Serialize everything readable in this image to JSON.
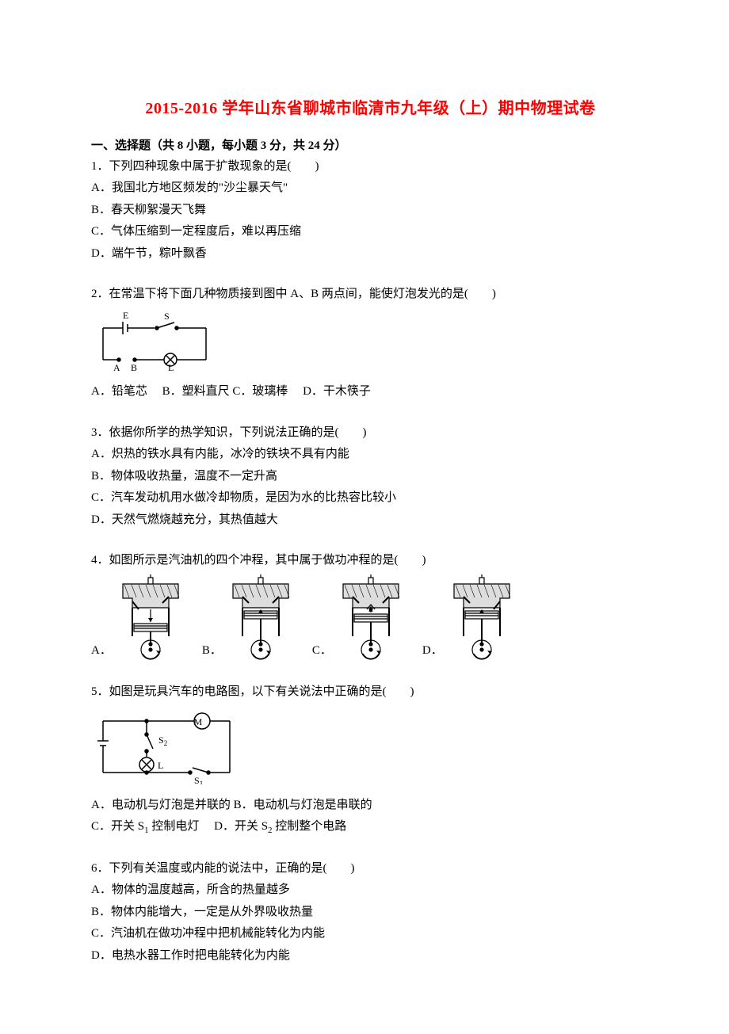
{
  "title": "2015-2016 学年山东省聊城市临清市九年级（上）期中物理试卷",
  "section1": {
    "heading": "一、选择题（共 8 小题，每小题 3 分，共 24 分）"
  },
  "q1": {
    "stem": "1．下列四种现象中属于扩散现象的是(　　)",
    "a": "A．我国北方地区频发的\"沙尘暴天气\"",
    "b": "B．春天柳絮漫天飞舞",
    "c": "C．气体压缩到一定程度后，难以再压缩",
    "d": "D．端午节，粽叶飘香"
  },
  "q2": {
    "stem": "2．在常温下将下面几种物质接到图中 A、B 两点间，能使灯泡发光的是(　　)",
    "optsLine": "A．铅笔芯　 B．塑料直尺 C．玻璃棒　 D．干木筷子",
    "diagram": {
      "labels": {
        "E": "E",
        "S": "S",
        "A": "A",
        "B": "B",
        "L": "L"
      },
      "colors": {
        "stroke": "#000000",
        "bg": "#ffffff"
      }
    }
  },
  "q3": {
    "stem": "3．依据你所学的热学知识，下列说法正确的是(　　)",
    "a": "A．炽热的铁水具有内能，冰冷的铁块不具有内能",
    "b": "B．物体吸收热量，温度不一定升高",
    "c": "C．汽车发动机用水做冷却物质，是因为水的比热容比较小",
    "d": "D．天然气燃烧越充分，其热值越大"
  },
  "q4": {
    "stem": "4．如图所示是汽油机的四个冲程，其中属于做功冲程的是(　　)",
    "labels": {
      "a": "A．",
      "b": "B．",
      "c": "C．",
      "d": "D．"
    },
    "diagram": {
      "stroke": "#000000",
      "bg": "#ffffff"
    }
  },
  "q5": {
    "stem": "5．如图是玩具汽车的电路图，以下有关说法中正确的是(　　)",
    "ab": "A．电动机与灯泡是并联的  B．电动机与灯泡是串联的",
    "c_prefix": "C．开关 S",
    "c_sub": "1",
    "c_suffix": " 控制电灯　 D．开关 S",
    "c_sub2": "2",
    "c_suffix2": " 控制整个电路",
    "diagram": {
      "labels": {
        "M": "M",
        "S1": "S",
        "S1sub": "2",
        "S2": "S",
        "S2sub": "1",
        "L": "L"
      },
      "colors": {
        "stroke": "#000000",
        "bg": "#ffffff"
      }
    }
  },
  "q6": {
    "stem": "6．下列有关温度或内能的说法中，正确的是(　　)",
    "a": "A．物体的温度越高，所含的热量越多",
    "b": "B．物体内能增大，一定是从外界吸收热量",
    "c": "C．汽油机在做功冲程中把机械能转化为内能",
    "d": "D．电热水器工作时把电能转化为内能"
  }
}
